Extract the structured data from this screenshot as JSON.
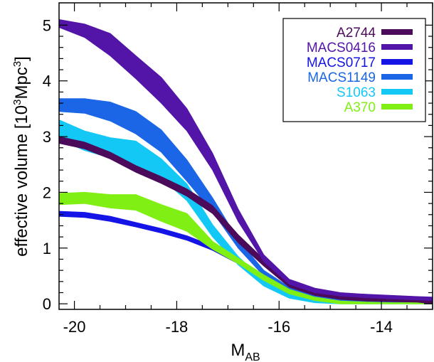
{
  "chart_data": {
    "type": "area",
    "xlabel": "M",
    "xlabel_subscript": "AB",
    "ylabel_prefix": "effective volume [10",
    "ylabel_sup": "3",
    "ylabel_suffix": "Mpc",
    "ylabel_sup2": "3",
    "ylabel_close": "]",
    "xlim": [
      -20.3,
      -13.0
    ],
    "ylim": [
      -0.1,
      5.4
    ],
    "x_ticks": [
      -20,
      -18,
      -16,
      -14
    ],
    "x_tick_labels": [
      "-20",
      "-18",
      "-16",
      "-14"
    ],
    "y_ticks": [
      0,
      1,
      2,
      3,
      4,
      5
    ],
    "y_tick_labels": [
      "0",
      "1",
      "2",
      "3",
      "4",
      "5"
    ],
    "legend_position": "top-right",
    "series": [
      {
        "name": "A2744",
        "color": "#4b0a5a",
        "x": [
          -20.3,
          -19.8,
          -19.3,
          -18.8,
          -18.3,
          -17.8,
          -17.3,
          -16.8,
          -16.3,
          -15.8,
          -15.3,
          -14.8,
          -14.3,
          -13.8,
          -13.3,
          -13.0
        ],
        "lower": [
          2.88,
          2.78,
          2.6,
          2.36,
          2.16,
          1.93,
          1.62,
          1.1,
          0.68,
          0.3,
          0.15,
          0.08,
          0.05,
          0.04,
          0.03,
          0.0
        ],
        "upper": [
          3.0,
          2.9,
          2.72,
          2.48,
          2.28,
          2.06,
          1.76,
          1.24,
          0.8,
          0.38,
          0.22,
          0.14,
          0.1,
          0.08,
          0.07,
          0.06
        ]
      },
      {
        "name": "MACS0416",
        "color": "#5314a8",
        "x": [
          -20.3,
          -19.8,
          -19.3,
          -18.8,
          -18.3,
          -17.8,
          -17.3,
          -16.8,
          -16.3,
          -15.8,
          -15.3,
          -14.8,
          -14.3,
          -13.8,
          -13.3,
          -13.0
        ],
        "lower": [
          4.96,
          4.78,
          4.45,
          4.04,
          3.6,
          3.1,
          2.4,
          1.48,
          0.76,
          0.35,
          0.2,
          0.14,
          0.11,
          0.09,
          0.07,
          0.06
        ],
        "upper": [
          5.1,
          5.02,
          4.85,
          4.45,
          4.06,
          3.5,
          2.7,
          1.7,
          0.88,
          0.44,
          0.28,
          0.2,
          0.17,
          0.15,
          0.13,
          0.12
        ]
      },
      {
        "name": "MACS0717",
        "color": "#1414e6",
        "x": [
          -20.3,
          -19.8,
          -19.3,
          -18.8,
          -18.3,
          -17.8,
          -17.3,
          -16.8,
          -16.3,
          -15.8,
          -15.3,
          -14.8,
          -14.3,
          -13.8,
          -13.3,
          -13.0
        ],
        "lower": [
          1.57,
          1.55,
          1.48,
          1.38,
          1.27,
          1.14,
          0.96,
          0.72,
          0.44,
          0.22,
          0.1,
          0.04,
          0.02,
          0.01,
          0.01,
          0.01
        ],
        "upper": [
          1.66,
          1.64,
          1.57,
          1.46,
          1.35,
          1.22,
          1.04,
          0.8,
          0.52,
          0.28,
          0.15,
          0.08,
          0.05,
          0.04,
          0.03,
          0.03
        ]
      },
      {
        "name": "MACS1149",
        "color": "#1a66e6",
        "x": [
          -20.3,
          -19.8,
          -19.3,
          -18.8,
          -18.3,
          -17.8,
          -17.3,
          -16.8,
          -16.3,
          -15.8,
          -15.3,
          -14.8,
          -14.3,
          -13.8,
          -13.3,
          -13.0
        ],
        "lower": [
          3.45,
          3.42,
          3.28,
          3.05,
          2.72,
          2.2,
          1.65,
          1.0,
          0.5,
          0.22,
          0.1,
          0.05,
          0.03,
          0.02,
          0.02,
          0.02
        ],
        "upper": [
          3.68,
          3.68,
          3.62,
          3.45,
          3.12,
          2.58,
          1.9,
          1.15,
          0.6,
          0.3,
          0.15,
          0.09,
          0.06,
          0.05,
          0.05,
          0.05
        ]
      },
      {
        "name": "S1063",
        "color": "#14c8f5",
        "x": [
          -20.3,
          -19.8,
          -19.3,
          -18.8,
          -18.3,
          -17.8,
          -17.3,
          -16.8,
          -16.3,
          -15.8,
          -15.3,
          -14.8,
          -14.3,
          -13.8,
          -13.3,
          -13.0
        ],
        "lower": [
          2.95,
          2.75,
          2.62,
          2.45,
          2.25,
          1.85,
          1.2,
          0.7,
          0.32,
          0.1,
          0.02,
          0.0,
          0.0,
          0.0,
          0.0,
          0.0
        ],
        "upper": [
          3.3,
          3.1,
          2.98,
          2.92,
          2.6,
          2.15,
          1.42,
          0.85,
          0.42,
          0.18,
          0.08,
          0.04,
          0.03,
          0.02,
          0.02,
          0.02
        ]
      },
      {
        "name": "A370",
        "color": "#80f014",
        "x": [
          -20.3,
          -19.8,
          -19.3,
          -18.8,
          -18.3,
          -17.8,
          -17.3,
          -16.8,
          -16.3,
          -15.8,
          -15.3,
          -14.8,
          -14.3,
          -13.8,
          -13.3,
          -13.0
        ],
        "lower": [
          1.78,
          1.8,
          1.72,
          1.68,
          1.48,
          1.3,
          0.98,
          0.72,
          0.42,
          0.18,
          0.06,
          0.0,
          0.0,
          0.0,
          0.0,
          0.0
        ],
        "upper": [
          1.98,
          2.0,
          1.96,
          1.96,
          1.78,
          1.62,
          1.12,
          0.82,
          0.52,
          0.26,
          0.12,
          0.05,
          0.03,
          0.02,
          0.02,
          0.02
        ]
      }
    ]
  }
}
